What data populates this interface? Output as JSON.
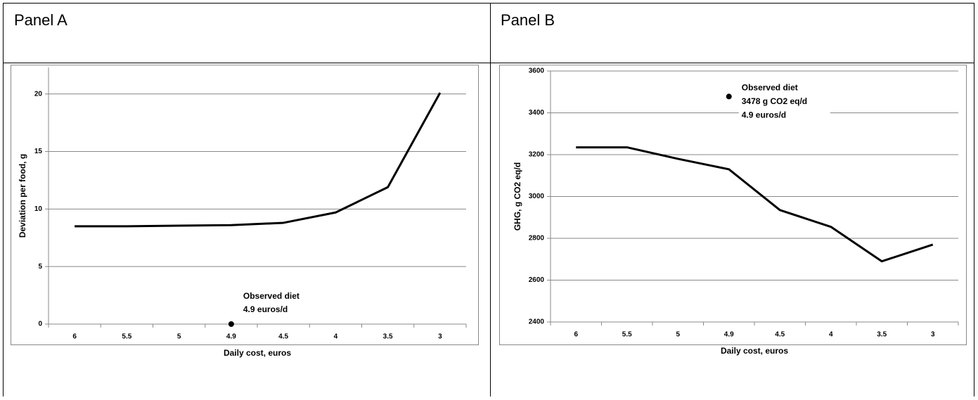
{
  "chart_data": [
    {
      "type": "line",
      "title": "Panel A",
      "x_label": "Daily cost, euros",
      "y_label": "Deviation per food, g",
      "categories": [
        "6",
        "5.5",
        "5",
        "4.9",
        "4.5",
        "4",
        "3.5",
        "3"
      ],
      "values": [
        8.5,
        8.5,
        8.55,
        8.6,
        8.8,
        9.7,
        11.9,
        20.1
      ],
      "color": "#000000",
      "ylim": [
        0,
        22.3
      ],
      "yticks": [
        0,
        5,
        10,
        15,
        20
      ],
      "grid": true,
      "observed": {
        "category": "4.9",
        "value": 0
      },
      "annotation": [
        "Observed diet",
        "4.9 euros/d"
      ]
    },
    {
      "type": "line",
      "title": "Panel B",
      "x_label": "Daily cost, euros",
      "y_label": "GHG, g CO2 eq/d",
      "categories": [
        "6",
        "5.5",
        "5",
        "4.9",
        "4.5",
        "4",
        "3.5",
        "3"
      ],
      "values": [
        3235,
        3235,
        3180,
        3130,
        2935,
        2855,
        2690,
        2770
      ],
      "color": "#000000",
      "ylim": [
        2400,
        3600
      ],
      "yticks": [
        2400,
        2600,
        2800,
        3000,
        3200,
        3400,
        3600
      ],
      "grid": true,
      "observed": {
        "category": "4.9",
        "value": 3478
      },
      "annotation": [
        "Observed diet",
        "3478 g CO2 eq/d",
        "4.9 euros/d"
      ]
    }
  ]
}
